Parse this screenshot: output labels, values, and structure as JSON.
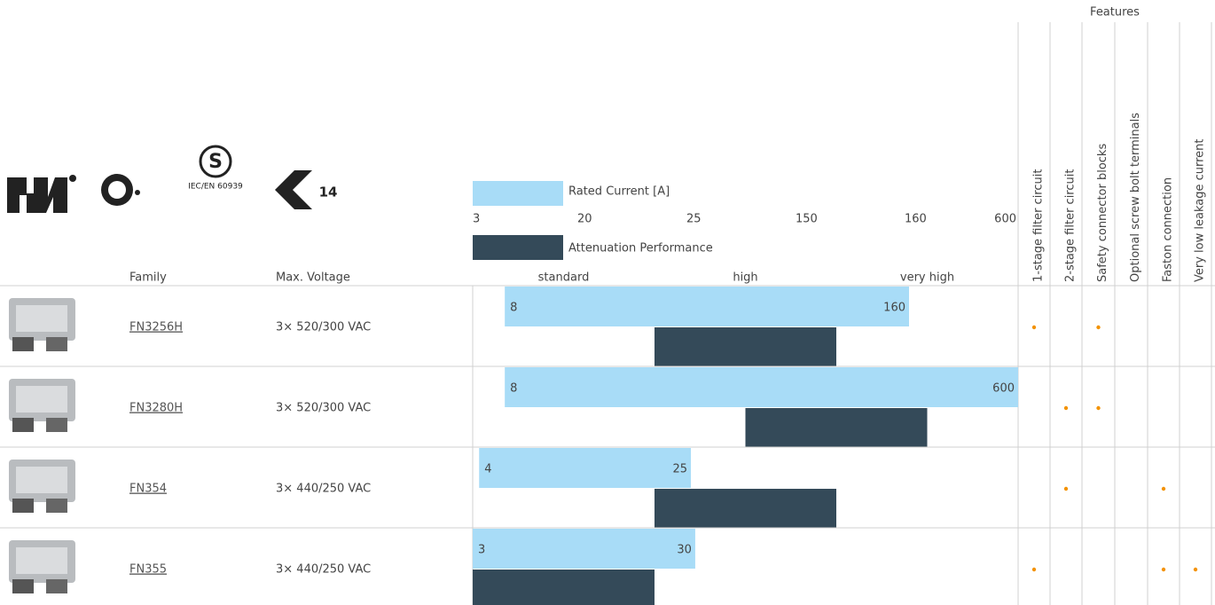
{
  "certifications": {
    "iec_label": "IEC/EN 60939"
  },
  "columns": {
    "family": "Family",
    "voltage": "Max. Voltage"
  },
  "legend": {
    "rated_current": "Rated Current [A]",
    "attenuation": "Attenuation Performance"
  },
  "current_ticks": [
    3,
    20,
    25,
    150,
    160,
    600
  ],
  "attenuation_levels": [
    "standard",
    "high",
    "very high"
  ],
  "features": {
    "title": "Features",
    "labels": [
      "1-stage filter circuit",
      "2-stage filter circuit",
      "Safety connector blocks",
      "Optional screw bolt terminals",
      "Faston connection",
      "Very low leakage current"
    ]
  },
  "rows": [
    {
      "family": "FN3256H",
      "voltage": "3× 520/300 VAC",
      "current_min": 8,
      "current_max": 160,
      "attenuation": [
        "high"
      ],
      "features": [
        true,
        false,
        true,
        false,
        false,
        false
      ]
    },
    {
      "family": "FN3280H",
      "voltage": "3× 520/300 VAC",
      "current_min": 8,
      "current_max": 600,
      "attenuation": [
        "high",
        "very high"
      ],
      "features": [
        false,
        true,
        true,
        false,
        false,
        false
      ]
    },
    {
      "family": "FN354",
      "voltage": "3× 440/250 VAC",
      "current_min": 4,
      "current_max": 25,
      "attenuation": [
        "high"
      ],
      "features": [
        false,
        true,
        false,
        false,
        true,
        false
      ]
    },
    {
      "family": "FN355",
      "voltage": "3× 440/250 VAC",
      "current_min": 3,
      "current_max": 30,
      "attenuation": [
        "standard"
      ],
      "features": [
        true,
        false,
        false,
        false,
        true,
        true
      ]
    }
  ]
}
